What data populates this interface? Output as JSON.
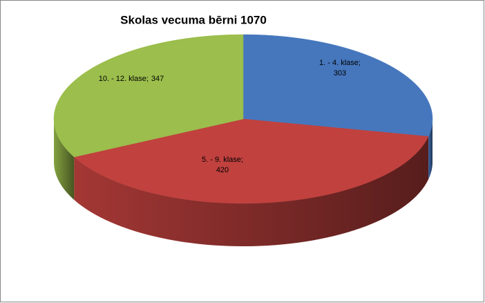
{
  "chart_data": {
    "type": "pie",
    "title": "Skolas vecuma bērni 1070",
    "categories": [
      "1. - 4. klase;",
      "5. - 9. klase;",
      "10. - 12. klase;"
    ],
    "values": [
      303,
      420,
      347
    ],
    "colors": [
      "#4677bd",
      "#c0413e",
      "#9bbe4c"
    ]
  }
}
